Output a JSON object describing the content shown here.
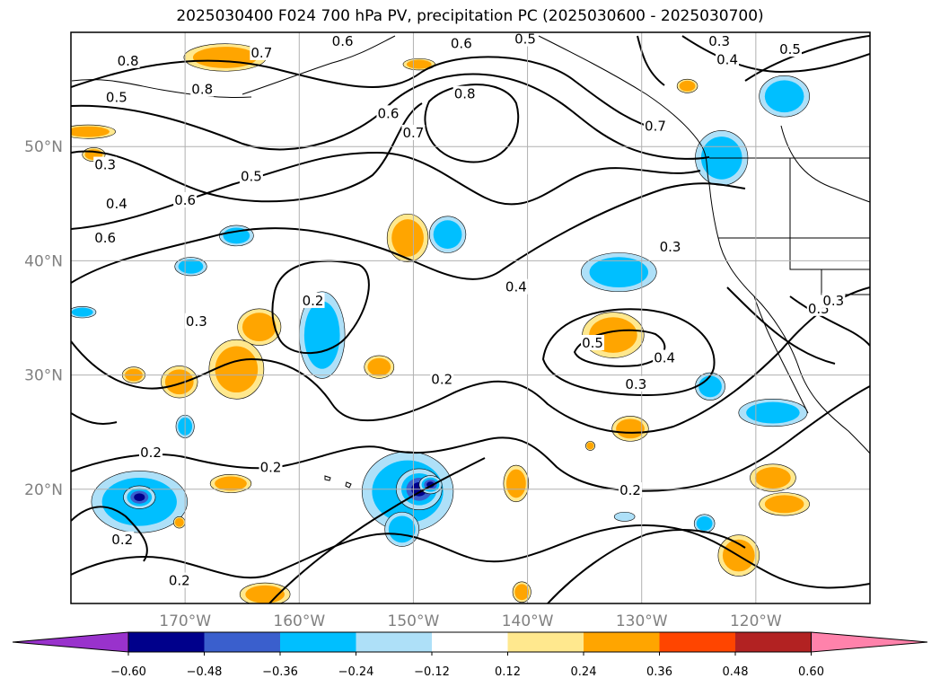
{
  "title": "2025030400 F024 700 hPa PV, precipitation PC (2025030600 - 2025030700)",
  "map": {
    "projection": "equirectangular",
    "lon_range": [
      -180,
      -110
    ],
    "lat_range": [
      10,
      60
    ],
    "gridlines": true,
    "lat_ticks": [
      {
        "lat": 50,
        "label": "50°N"
      },
      {
        "lat": 40,
        "label": "40°N"
      },
      {
        "lat": 30,
        "label": "30°N"
      },
      {
        "lat": 20,
        "label": "20°N"
      }
    ],
    "lon_ticks": [
      {
        "lon": -170,
        "label": "170°W"
      },
      {
        "lon": -160,
        "label": "160°W"
      },
      {
        "lon": -150,
        "label": "150°W"
      },
      {
        "lon": -140,
        "label": "140°W"
      },
      {
        "lon": -130,
        "label": "130°W"
      },
      {
        "lon": -120,
        "label": "120°W"
      }
    ],
    "contour_labels": [
      {
        "text": "0.8",
        "lon": -175.0,
        "lat": 57.5
      },
      {
        "text": "0.7",
        "lon": -163.3,
        "lat": 58.2
      },
      {
        "text": "0.6",
        "lon": -156.2,
        "lat": 59.2
      },
      {
        "text": "0.6",
        "lon": -145.8,
        "lat": 59.0
      },
      {
        "text": "0.5",
        "lon": -140.2,
        "lat": 59.4
      },
      {
        "text": "0.3",
        "lon": -123.2,
        "lat": 59.2
      },
      {
        "text": "0.4",
        "lon": -122.5,
        "lat": 57.6
      },
      {
        "text": "0.5",
        "lon": -117.0,
        "lat": 58.5
      },
      {
        "text": "0.8",
        "lon": -168.5,
        "lat": 55.0
      },
      {
        "text": "0.5",
        "lon": -176.0,
        "lat": 54.3
      },
      {
        "text": "0.6",
        "lon": -152.2,
        "lat": 52.9
      },
      {
        "text": "0.7",
        "lon": -150.0,
        "lat": 51.2
      },
      {
        "text": "0.8",
        "lon": -145.5,
        "lat": 54.6
      },
      {
        "text": "0.7",
        "lon": -128.8,
        "lat": 51.8
      },
      {
        "text": "0.3",
        "lon": -177.0,
        "lat": 48.4
      },
      {
        "text": "0.5",
        "lon": -164.2,
        "lat": 47.4
      },
      {
        "text": "0.6",
        "lon": -170.0,
        "lat": 45.3
      },
      {
        "text": "0.4",
        "lon": -176.0,
        "lat": 45.0
      },
      {
        "text": "0.6",
        "lon": -177.0,
        "lat": 42.0
      },
      {
        "text": "0.3",
        "lon": -127.5,
        "lat": 41.2
      },
      {
        "text": "0.4",
        "lon": -141.0,
        "lat": 37.7
      },
      {
        "text": "0.2",
        "lon": -158.8,
        "lat": 36.5
      },
      {
        "text": "0.3",
        "lon": -169.0,
        "lat": 34.7
      },
      {
        "text": "0.5",
        "lon": -114.5,
        "lat": 35.8
      },
      {
        "text": "0.3",
        "lon": -113.2,
        "lat": 36.5
      },
      {
        "text": "0.5",
        "lon": -134.3,
        "lat": 32.8
      },
      {
        "text": "0.4",
        "lon": -128.0,
        "lat": 31.5
      },
      {
        "text": "0.3",
        "lon": -130.5,
        "lat": 29.2
      },
      {
        "text": "0.2",
        "lon": -147.5,
        "lat": 29.6
      },
      {
        "text": "0.2",
        "lon": -173.0,
        "lat": 23.2
      },
      {
        "text": "0.2",
        "lon": -162.5,
        "lat": 21.9
      },
      {
        "text": "0.2",
        "lon": -131.0,
        "lat": 19.9
      },
      {
        "text": "0.2",
        "lon": -175.5,
        "lat": 15.6
      },
      {
        "text": "0.2",
        "lon": -170.5,
        "lat": 12.0
      }
    ]
  },
  "precip_blobs": [
    {
      "lon": -166.5,
      "lat": 57.8,
      "rx": 3.6,
      "ry": 1.2,
      "level": 0.4
    },
    {
      "lon": -178.5,
      "lat": 51.3,
      "rx": 2.4,
      "ry": 0.6,
      "level": 0.3
    },
    {
      "lon": -178.0,
      "lat": 49.3,
      "rx": 1.0,
      "ry": 0.6,
      "level": 0.4
    },
    {
      "lon": -149.5,
      "lat": 57.2,
      "rx": 1.4,
      "ry": 0.5,
      "level": 0.4
    },
    {
      "lon": -126.0,
      "lat": 55.3,
      "rx": 0.9,
      "ry": 0.6,
      "level": 0.4
    },
    {
      "lon": -117.5,
      "lat": 54.4,
      "rx": 2.2,
      "ry": 1.8,
      "level": -0.3
    },
    {
      "lon": -123.0,
      "lat": 49.0,
      "rx": 2.3,
      "ry": 2.4,
      "level": -0.3
    },
    {
      "lon": -165.5,
      "lat": 42.2,
      "rx": 1.5,
      "ry": 0.9,
      "level": -0.3
    },
    {
      "lon": -147.0,
      "lat": 42.3,
      "rx": 1.6,
      "ry": 1.6,
      "level": -0.4
    },
    {
      "lon": -150.5,
      "lat": 42.0,
      "rx": 1.8,
      "ry": 2.1,
      "level": 0.4
    },
    {
      "lon": -132.0,
      "lat": 39.0,
      "rx": 3.3,
      "ry": 1.7,
      "level": -0.3
    },
    {
      "lon": -169.5,
      "lat": 39.5,
      "rx": 1.4,
      "ry": 0.8,
      "level": -0.3
    },
    {
      "lon": -163.5,
      "lat": 34.2,
      "rx": 1.9,
      "ry": 1.6,
      "level": 0.4
    },
    {
      "lon": -165.5,
      "lat": 30.5,
      "rx": 2.4,
      "ry": 2.6,
      "level": 0.4
    },
    {
      "lon": -170.5,
      "lat": 29.4,
      "rx": 1.6,
      "ry": 1.4,
      "level": 0.4
    },
    {
      "lon": -174.5,
      "lat": 30.0,
      "rx": 1.0,
      "ry": 0.7,
      "level": 0.3
    },
    {
      "lon": -158.0,
      "lat": 33.5,
      "rx": 2.0,
      "ry": 3.8,
      "level": -0.3
    },
    {
      "lon": -153.0,
      "lat": 30.7,
      "rx": 1.3,
      "ry": 1.0,
      "level": 0.4
    },
    {
      "lon": -132.5,
      "lat": 33.5,
      "rx": 2.7,
      "ry": 2.0,
      "level": 0.4
    },
    {
      "lon": -124.0,
      "lat": 29.0,
      "rx": 1.3,
      "ry": 1.2,
      "level": -0.3
    },
    {
      "lon": -118.5,
      "lat": 26.7,
      "rx": 3.0,
      "ry": 1.2,
      "level": -0.3
    },
    {
      "lon": -131.0,
      "lat": 25.3,
      "rx": 1.6,
      "ry": 1.1,
      "level": 0.4
    },
    {
      "lon": -179.0,
      "lat": 35.5,
      "rx": 1.2,
      "ry": 0.5,
      "level": -0.3
    },
    {
      "lon": -170.0,
      "lat": 25.5,
      "rx": 0.8,
      "ry": 1.0,
      "level": -0.3
    },
    {
      "lon": -174.0,
      "lat": 18.9,
      "rx": 4.2,
      "ry": 2.7,
      "level": -0.4
    },
    {
      "lon": -174.0,
      "lat": 19.3,
      "rx": 1.4,
      "ry": 1.0,
      "level": -0.55
    },
    {
      "lon": -166.0,
      "lat": 20.5,
      "rx": 1.8,
      "ry": 0.8,
      "level": 0.4
    },
    {
      "lon": -170.5,
      "lat": 17.1,
      "rx": 0.5,
      "ry": 0.5,
      "level": 0.4
    },
    {
      "lon": -150.5,
      "lat": 19.8,
      "rx": 4.0,
      "ry": 3.5,
      "level": -0.4
    },
    {
      "lon": -149.5,
      "lat": 20.0,
      "rx": 2.0,
      "ry": 1.8,
      "level": -0.55
    },
    {
      "lon": -148.5,
      "lat": 20.4,
      "rx": 1.0,
      "ry": 0.8,
      "level": -0.65
    },
    {
      "lon": -151.0,
      "lat": 16.5,
      "rx": 1.5,
      "ry": 1.5,
      "level": -0.3
    },
    {
      "lon": -141.0,
      "lat": 20.5,
      "rx": 1.1,
      "ry": 1.6,
      "level": 0.4
    },
    {
      "lon": -118.5,
      "lat": 21.0,
      "rx": 2.0,
      "ry": 1.2,
      "level": 0.4
    },
    {
      "lon": -117.5,
      "lat": 18.7,
      "rx": 2.2,
      "ry": 1.0,
      "level": 0.4
    },
    {
      "lon": -121.5,
      "lat": 14.2,
      "rx": 1.8,
      "ry": 1.8,
      "level": 0.4
    },
    {
      "lon": -124.5,
      "lat": 17.0,
      "rx": 0.9,
      "ry": 0.8,
      "level": -0.3
    },
    {
      "lon": -140.5,
      "lat": 11.0,
      "rx": 0.8,
      "ry": 0.9,
      "level": 0.4
    },
    {
      "lon": -163.0,
      "lat": 10.8,
      "rx": 2.2,
      "ry": 1.0,
      "level": 0.4
    },
    {
      "lon": -134.5,
      "lat": 23.8,
      "rx": 0.4,
      "ry": 0.4,
      "level": 0.4
    },
    {
      "lon": -131.5,
      "lat": 17.6,
      "rx": 0.9,
      "ry": 0.4,
      "level": -0.2
    }
  ],
  "colorbar": {
    "tick_labels": [
      "−0.60",
      "−0.48",
      "−0.36",
      "−0.24",
      "−0.12",
      "0.12",
      "0.24",
      "0.36",
      "0.48",
      "0.60"
    ],
    "colors": [
      "#9932cc",
      "#00008b",
      "#3a5fcd",
      "#00bfff",
      "#aee0f8",
      "#ffffff",
      "#ffe88e",
      "#ffa500",
      "#ff4500",
      "#b22222",
      "#ff82ab"
    ]
  }
}
